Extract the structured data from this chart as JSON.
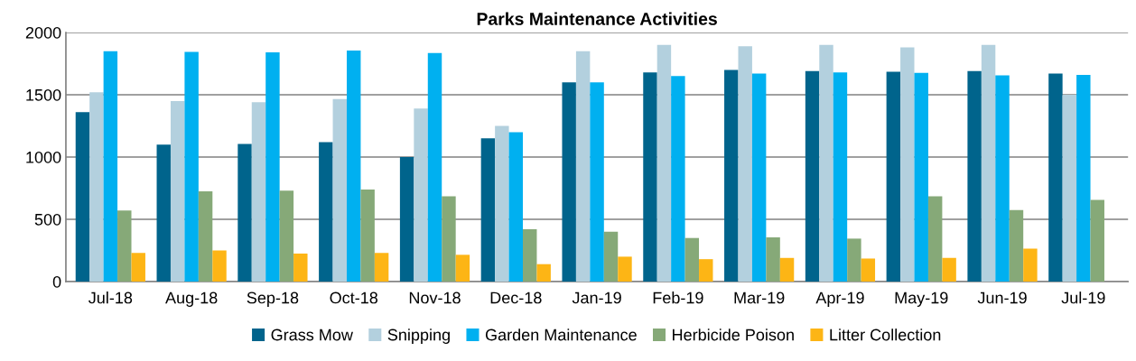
{
  "chart_data": {
    "type": "bar",
    "title": "Parks Maintenance Activities",
    "categories": [
      "Jul-18",
      "Aug-18",
      "Sep-18",
      "Oct-18",
      "Nov-18",
      "Dec-18",
      "Jan-19",
      "Feb-19",
      "Mar-19",
      "Apr-19",
      "May-19",
      "Jun-19",
      "Jul-19"
    ],
    "series": [
      {
        "name": "Grass Mow",
        "color": "#00648c",
        "values": [
          1360,
          1100,
          1105,
          1120,
          1000,
          1150,
          1600,
          1680,
          1700,
          1690,
          1685,
          1690,
          1670
        ]
      },
      {
        "name": "Snipping",
        "color": "#b3d0de",
        "values": [
          1520,
          1450,
          1440,
          1465,
          1390,
          1250,
          1850,
          1900,
          1890,
          1900,
          1880,
          1900,
          1500
        ]
      },
      {
        "name": "Garden Maintenance",
        "color": "#00b0f0",
        "values": [
          1850,
          1845,
          1840,
          1855,
          1835,
          1200,
          1600,
          1650,
          1670,
          1680,
          1675,
          1655,
          1660
        ]
      },
      {
        "name": "Herbicide Poison",
        "color": "#86a978",
        "values": [
          570,
          725,
          730,
          740,
          685,
          420,
          400,
          350,
          355,
          345,
          685,
          575,
          655
        ]
      },
      {
        "name": "Litter Collection",
        "color": "#fdb515",
        "values": [
          230,
          250,
          225,
          230,
          215,
          140,
          200,
          180,
          190,
          185,
          190,
          265,
          null
        ]
      }
    ],
    "ylim": [
      0,
      2000
    ],
    "yticks": [
      0,
      500,
      1000,
      1500,
      2000
    ],
    "grid": "y",
    "legend": "bottom"
  }
}
